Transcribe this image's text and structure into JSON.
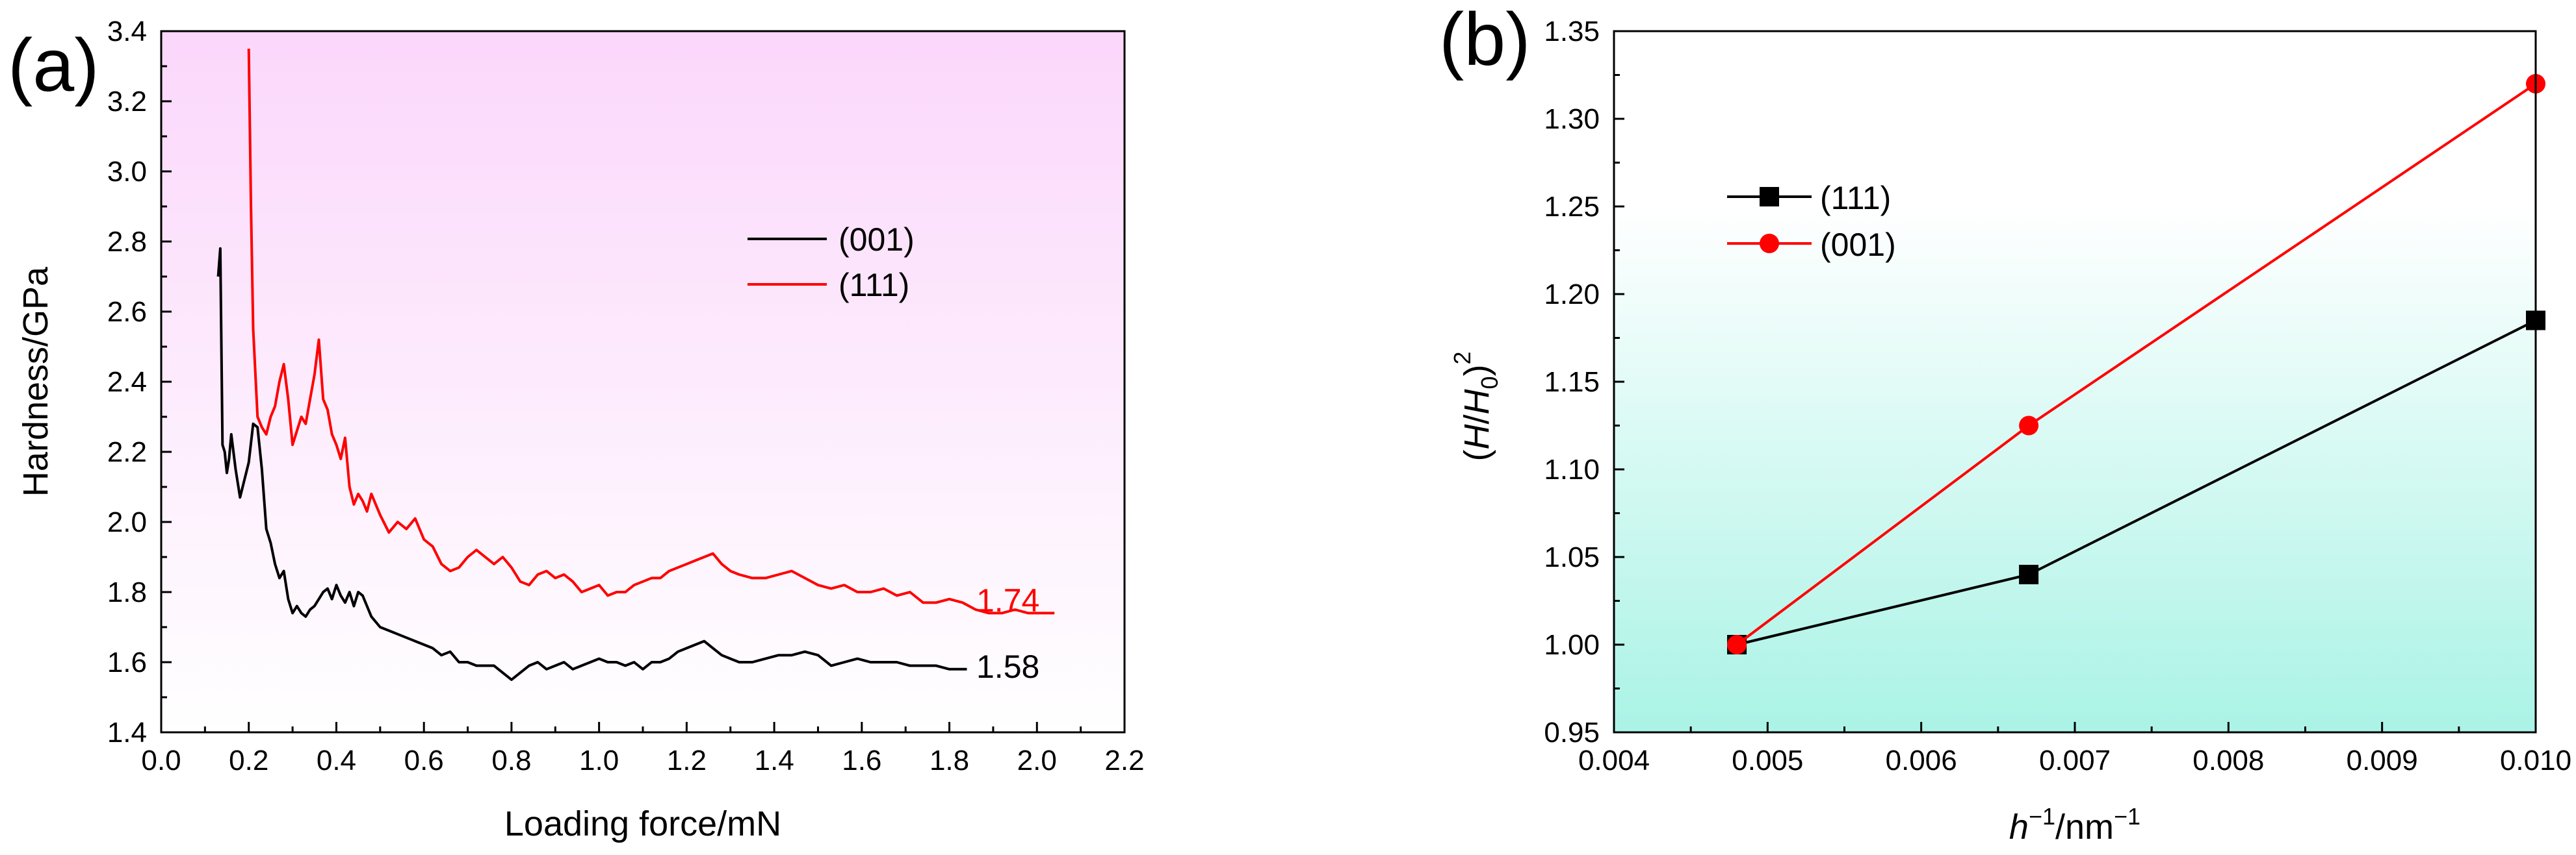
{
  "chart_data": [
    {
      "type": "line",
      "panel_label": "(a)",
      "title": "",
      "xlabel": "Loading force/mN",
      "ylabel": "Hardness/GPa",
      "xlim": [
        0.0,
        2.2
      ],
      "ylim": [
        1.4,
        3.4
      ],
      "xticks": [
        "0.0",
        "0.2",
        "0.4",
        "0.6",
        "0.8",
        "1.0",
        "1.2",
        "1.4",
        "1.6",
        "1.8",
        "2.0",
        "2.2"
      ],
      "yticks": [
        "1.4",
        "1.6",
        "1.8",
        "2.0",
        "2.2",
        "2.4",
        "2.6",
        "2.8",
        "3.0",
        "3.2",
        "3.4"
      ],
      "grid": false,
      "legend_position": "upper-right",
      "background": {
        "top": "#fbd7fb",
        "bottom": "#ffffff"
      },
      "series": [
        {
          "name": "(001)",
          "color": "#000000",
          "end_label": "1.58",
          "x": [
            0.13,
            0.135,
            0.14,
            0.145,
            0.15,
            0.155,
            0.16,
            0.17,
            0.18,
            0.19,
            0.2,
            0.21,
            0.22,
            0.23,
            0.24,
            0.25,
            0.26,
            0.27,
            0.28,
            0.29,
            0.3,
            0.31,
            0.32,
            0.33,
            0.34,
            0.35,
            0.36,
            0.37,
            0.38,
            0.39,
            0.4,
            0.41,
            0.42,
            0.43,
            0.44,
            0.45,
            0.46,
            0.47,
            0.48,
            0.5,
            0.52,
            0.54,
            0.56,
            0.58,
            0.6,
            0.62,
            0.64,
            0.66,
            0.68,
            0.7,
            0.72,
            0.74,
            0.76,
            0.78,
            0.8,
            0.82,
            0.84,
            0.86,
            0.88,
            0.9,
            0.92,
            0.94,
            0.96,
            0.98,
            1.0,
            1.02,
            1.04,
            1.06,
            1.08,
            1.1,
            1.12,
            1.14,
            1.16,
            1.18,
            1.2,
            1.22,
            1.24,
            1.26,
            1.28,
            1.3,
            1.32,
            1.35,
            1.38,
            1.41,
            1.44,
            1.47,
            1.5,
            1.53,
            1.56,
            1.59,
            1.62,
            1.65,
            1.68,
            1.71,
            1.74,
            1.77,
            1.8,
            1.84
          ],
          "values": [
            2.7,
            2.78,
            2.22,
            2.2,
            2.14,
            2.18,
            2.25,
            2.15,
            2.07,
            2.12,
            2.17,
            2.28,
            2.27,
            2.15,
            1.98,
            1.94,
            1.88,
            1.84,
            1.86,
            1.78,
            1.74,
            1.76,
            1.74,
            1.73,
            1.75,
            1.76,
            1.78,
            1.8,
            1.81,
            1.78,
            1.82,
            1.79,
            1.77,
            1.8,
            1.76,
            1.8,
            1.79,
            1.76,
            1.73,
            1.7,
            1.69,
            1.68,
            1.67,
            1.66,
            1.65,
            1.64,
            1.62,
            1.63,
            1.6,
            1.6,
            1.59,
            1.59,
            1.59,
            1.57,
            1.55,
            1.57,
            1.59,
            1.6,
            1.58,
            1.59,
            1.6,
            1.58,
            1.59,
            1.6,
            1.61,
            1.6,
            1.6,
            1.59,
            1.6,
            1.58,
            1.6,
            1.6,
            1.61,
            1.63,
            1.64,
            1.65,
            1.66,
            1.64,
            1.62,
            1.61,
            1.6,
            1.6,
            1.61,
            1.62,
            1.62,
            1.63,
            1.62,
            1.59,
            1.6,
            1.61,
            1.6,
            1.6,
            1.6,
            1.59,
            1.59,
            1.59,
            1.58,
            1.58
          ]
        },
        {
          "name": "(111)",
          "color": "#ff0000",
          "end_label": "1.74",
          "x": [
            0.2,
            0.205,
            0.21,
            0.22,
            0.23,
            0.24,
            0.25,
            0.26,
            0.27,
            0.28,
            0.29,
            0.3,
            0.31,
            0.32,
            0.33,
            0.34,
            0.35,
            0.36,
            0.37,
            0.38,
            0.39,
            0.4,
            0.41,
            0.42,
            0.43,
            0.44,
            0.45,
            0.46,
            0.47,
            0.48,
            0.5,
            0.52,
            0.54,
            0.56,
            0.58,
            0.6,
            0.62,
            0.64,
            0.66,
            0.68,
            0.7,
            0.72,
            0.74,
            0.76,
            0.78,
            0.8,
            0.82,
            0.84,
            0.86,
            0.88,
            0.9,
            0.92,
            0.94,
            0.96,
            0.98,
            1.0,
            1.02,
            1.04,
            1.06,
            1.08,
            1.1,
            1.12,
            1.14,
            1.16,
            1.18,
            1.2,
            1.22,
            1.24,
            1.26,
            1.28,
            1.3,
            1.32,
            1.35,
            1.38,
            1.41,
            1.44,
            1.47,
            1.5,
            1.53,
            1.56,
            1.59,
            1.62,
            1.65,
            1.68,
            1.71,
            1.74,
            1.77,
            1.8,
            1.83,
            1.86,
            1.89,
            1.92,
            1.95,
            1.98,
            2.01,
            2.04
          ],
          "values": [
            3.35,
            2.9,
            2.55,
            2.3,
            2.27,
            2.25,
            2.3,
            2.33,
            2.4,
            2.45,
            2.35,
            2.22,
            2.26,
            2.3,
            2.28,
            2.35,
            2.42,
            2.52,
            2.35,
            2.32,
            2.25,
            2.22,
            2.18,
            2.24,
            2.1,
            2.05,
            2.08,
            2.06,
            2.03,
            2.08,
            2.02,
            1.97,
            2.0,
            1.98,
            2.01,
            1.95,
            1.93,
            1.88,
            1.86,
            1.87,
            1.9,
            1.92,
            1.9,
            1.88,
            1.9,
            1.87,
            1.83,
            1.82,
            1.85,
            1.86,
            1.84,
            1.85,
            1.83,
            1.8,
            1.81,
            1.82,
            1.79,
            1.8,
            1.8,
            1.82,
            1.83,
            1.84,
            1.84,
            1.86,
            1.87,
            1.88,
            1.89,
            1.9,
            1.91,
            1.88,
            1.86,
            1.85,
            1.84,
            1.84,
            1.85,
            1.86,
            1.84,
            1.82,
            1.81,
            1.82,
            1.8,
            1.8,
            1.81,
            1.79,
            1.8,
            1.77,
            1.77,
            1.78,
            1.77,
            1.75,
            1.74,
            1.74,
            1.75,
            1.74,
            1.74,
            1.74
          ]
        }
      ]
    },
    {
      "type": "line",
      "panel_label": "(b)",
      "title": "",
      "xlabel_base": "h",
      "xlabel_sup1": "−1",
      "xlabel_mid": "/nm",
      "xlabel_sup2": "−1",
      "ylabel_open": "(",
      "ylabel_H": "H",
      "ylabel_slash": "/",
      "ylabel_H0": "H",
      "ylabel_sub": "0",
      "ylabel_close": ")",
      "ylabel_sup": "2",
      "xlim": [
        0.004,
        0.01
      ],
      "ylim": [
        0.95,
        1.35
      ],
      "xticks": [
        "0.004",
        "0.005",
        "0.006",
        "0.007",
        "0.008",
        "0.009",
        "0.010"
      ],
      "yticks": [
        "0.95",
        "1.00",
        "1.05",
        "1.10",
        "1.15",
        "1.20",
        "1.25",
        "1.30",
        "1.35"
      ],
      "grid": false,
      "legend_position": "upper-left",
      "background": {
        "top": "#ffffff",
        "bottom": "#aaf3e6"
      },
      "series": [
        {
          "name": "(111)",
          "color": "#000000",
          "marker": "square",
          "x": [
            0.0048,
            0.0067,
            0.01
          ],
          "values": [
            1.0,
            1.04,
            1.185
          ]
        },
        {
          "name": "(001)",
          "color": "#ff0000",
          "marker": "circle",
          "x": [
            0.0048,
            0.0067,
            0.01
          ],
          "values": [
            1.0,
            1.125,
            1.32
          ]
        }
      ]
    }
  ]
}
